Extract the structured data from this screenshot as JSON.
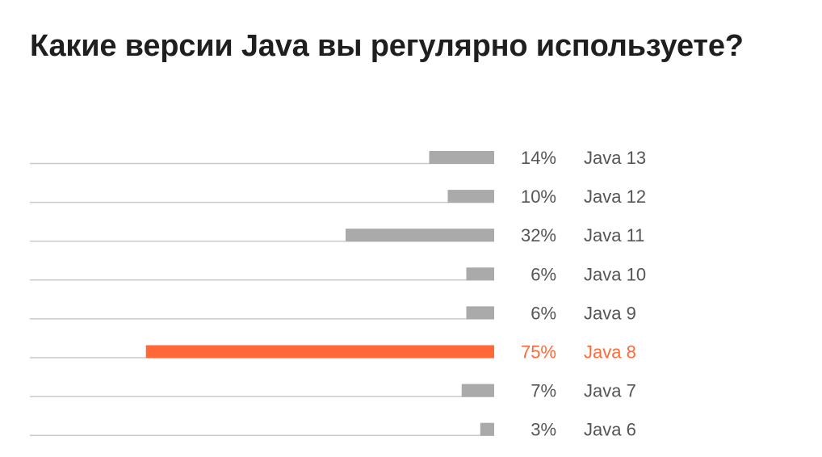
{
  "chart_data": {
    "type": "bar",
    "title": "Какие версии Java вы регулярно используете?",
    "orientation": "horizontal",
    "categories": [
      "Java 13",
      "Java 12",
      "Java 11",
      "Java 10",
      "Java 9",
      "Java 8",
      "Java 7",
      "Java 6"
    ],
    "values": [
      14,
      10,
      32,
      6,
      6,
      75,
      7,
      3
    ],
    "value_labels": [
      "14%",
      "10%",
      "32%",
      "6%",
      "6%",
      "75%",
      "7%",
      "3%"
    ],
    "unit": "%",
    "xlim": [
      0,
      100
    ],
    "highlight_index": 5,
    "grid": false,
    "colors": {
      "default_bar": "#aaaaaa",
      "highlight_bar": "#ff6937",
      "baseline": "#c9c9c9",
      "label_default": "#555555",
      "label_highlight": "#ff6937"
    }
  }
}
